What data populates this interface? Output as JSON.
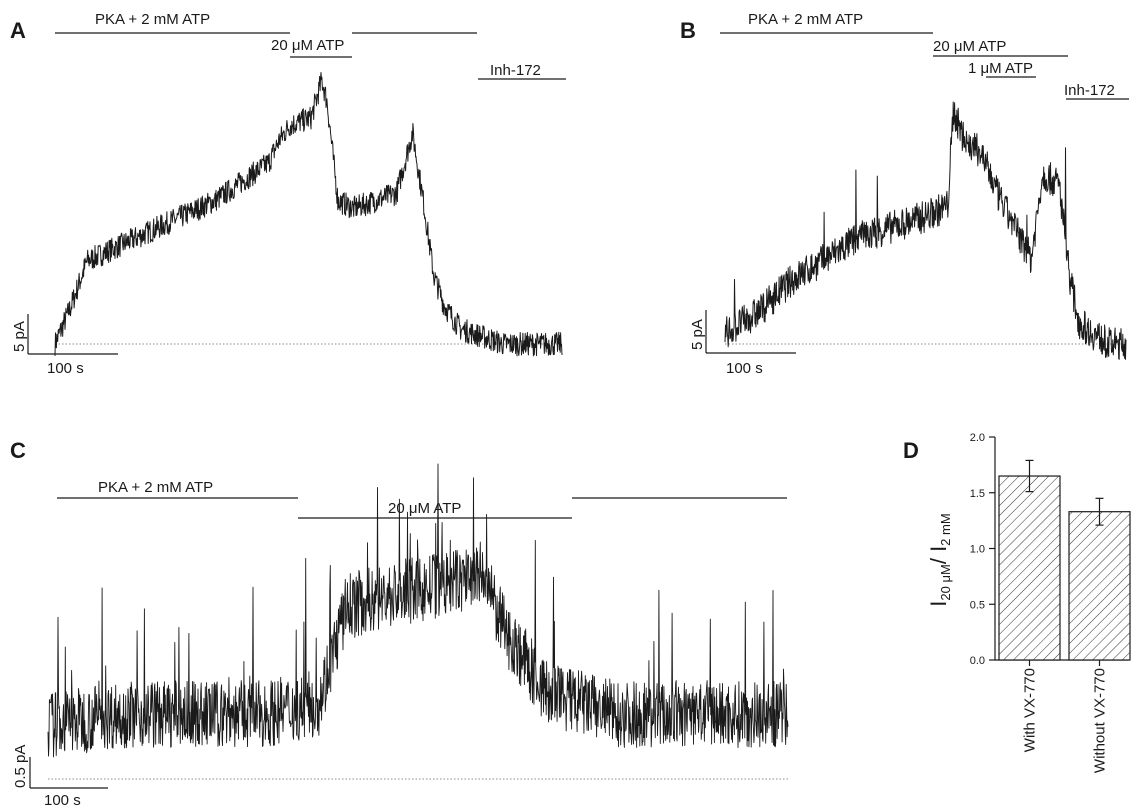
{
  "panels": {
    "A": {
      "label": "A",
      "annotations": [
        "PKA + 2 mM ATP",
        "20 μM ATP",
        "Inh-172"
      ],
      "scalebar": {
        "y": "5 pA",
        "x": "100 s"
      }
    },
    "B": {
      "label": "B",
      "annotations": [
        "PKA + 2 mM ATP",
        "20 μM ATP",
        "1 μM ATP",
        "Inh-172"
      ],
      "scalebar": {
        "y": "5 pA",
        "x": "100 s"
      }
    },
    "C": {
      "label": "C",
      "annotations": [
        "PKA + 2 mM ATP",
        "20 μM ATP"
      ],
      "scalebar": {
        "y": "0.5 pA",
        "x": "100 s"
      }
    },
    "D": {
      "label": "D"
    }
  },
  "chart_data": [
    {
      "panel": "A",
      "type": "line",
      "x": [
        0,
        15,
        30,
        60,
        90,
        120,
        150,
        180,
        200,
        210,
        220,
        240,
        250,
        255,
        265,
        280,
        300,
        320,
        335,
        345,
        355,
        365,
        380,
        400,
        420,
        440,
        460,
        475
      ],
      "values": [
        0,
        5,
        11,
        13,
        15,
        17,
        19,
        22,
        24,
        27,
        29,
        30,
        35,
        32,
        19,
        18,
        19,
        20,
        28,
        19,
        9,
        5,
        2,
        1,
        0,
        0,
        0,
        0
      ],
      "xlabel": "",
      "ylabel": ""
    },
    {
      "panel": "B",
      "type": "line",
      "x": [
        0,
        30,
        60,
        90,
        120,
        150,
        180,
        200,
        205,
        215,
        230,
        245,
        260,
        275,
        285,
        300,
        310,
        318,
        330,
        345,
        360
      ],
      "values": [
        1,
        3,
        6,
        8,
        10,
        11,
        12,
        13,
        22,
        19,
        18,
        14,
        11,
        8,
        16,
        15,
        6,
        2,
        1,
        0,
        0
      ],
      "xlabel": "",
      "ylabel": ""
    },
    {
      "panel": "C",
      "type": "line",
      "x": [
        0,
        100,
        200,
        300,
        380,
        420,
        480,
        560,
        610,
        640,
        700,
        800,
        900,
        1000,
        1040
      ],
      "values": [
        0.25,
        0.3,
        0.3,
        0.3,
        0.35,
        0.8,
        0.85,
        0.9,
        0.95,
        0.7,
        0.4,
        0.3,
        0.3,
        0.3,
        0.3
      ],
      "xlabel": "",
      "ylabel": ""
    },
    {
      "panel": "D",
      "type": "bar",
      "categories": [
        "With VX-770",
        "Without VX-770"
      ],
      "values": [
        1.65,
        1.33
      ],
      "errors": [
        0.14,
        0.12
      ],
      "ylim": [
        0,
        2.0
      ],
      "yticks": [
        "0.0",
        "0.5",
        "1.0",
        "1.5",
        "2.0"
      ],
      "ylabel_main": "I",
      "ylabel_sub1": "20 μM",
      "ylabel_sep": "/ I",
      "ylabel_sub2": "2 mM",
      "xlabel": ""
    }
  ]
}
